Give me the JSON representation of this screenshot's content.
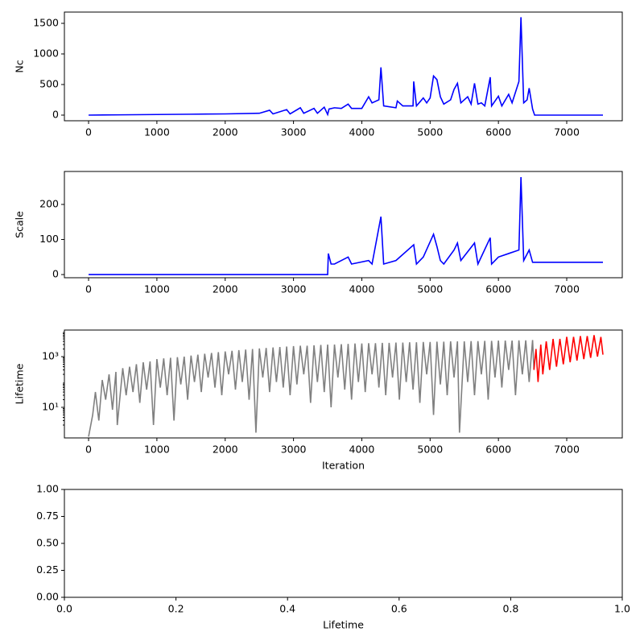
{
  "chart_data": [
    {
      "type": "line",
      "ylabel": "Nc",
      "xlim": [
        -354,
        7813
      ],
      "ylim": [
        -92,
        1684
      ],
      "xticks": [
        0,
        1000,
        2000,
        3000,
        4000,
        5000,
        6000,
        7000
      ],
      "yticks": [
        0,
        500,
        1000,
        1500
      ],
      "series": [
        {
          "color": "#0000ff",
          "x": [
            0,
            500,
            1000,
            1500,
            2000,
            2500,
            2650,
            2700,
            2900,
            2950,
            3100,
            3150,
            3300,
            3350,
            3450,
            3500,
            3520,
            3600,
            3700,
            3800,
            3850,
            4000,
            4100,
            4150,
            4250,
            4280,
            4320,
            4500,
            4520,
            4600,
            4750,
            4760,
            4800,
            4900,
            4950,
            5000,
            5050,
            5100,
            5150,
            5200,
            5300,
            5350,
            5400,
            5450,
            5550,
            5600,
            5650,
            5700,
            5750,
            5800,
            5880,
            5900,
            6000,
            6050,
            6150,
            6200,
            6300,
            6330,
            6370,
            6420,
            6450,
            6500,
            6530,
            7530
          ],
          "values": [
            0,
            5,
            10,
            15,
            20,
            30,
            80,
            20,
            90,
            20,
            120,
            30,
            110,
            30,
            130,
            10,
            100,
            120,
            110,
            180,
            110,
            110,
            300,
            200,
            250,
            780,
            150,
            120,
            230,
            150,
            150,
            550,
            150,
            280,
            200,
            280,
            640,
            580,
            300,
            180,
            250,
            420,
            520,
            200,
            300,
            180,
            520,
            180,
            200,
            150,
            620,
            150,
            310,
            150,
            340,
            200,
            550,
            1600,
            200,
            250,
            440,
            100,
            0,
            0
          ]
        }
      ]
    },
    {
      "type": "line",
      "ylabel": "Scale",
      "xlim": [
        -354,
        7813
      ],
      "ylim": [
        -9,
        294
      ],
      "xticks": [
        0,
        1000,
        2000,
        3000,
        4000,
        5000,
        6000,
        7000
      ],
      "yticks": [
        0,
        100,
        200
      ],
      "series": [
        {
          "color": "#0000ff",
          "x": [
            0,
            3500,
            3510,
            3550,
            3600,
            3800,
            3850,
            4100,
            4150,
            4280,
            4320,
            4500,
            4760,
            4800,
            4900,
            5050,
            5100,
            5150,
            5200,
            5350,
            5400,
            5450,
            5650,
            5700,
            5880,
            5900,
            6000,
            6150,
            6300,
            6330,
            6370,
            6450,
            6500,
            7530
          ],
          "values": [
            0,
            0,
            60,
            30,
            30,
            50,
            30,
            40,
            30,
            165,
            30,
            40,
            85,
            30,
            50,
            115,
            80,
            40,
            30,
            70,
            90,
            40,
            90,
            30,
            105,
            30,
            50,
            60,
            70,
            278,
            40,
            70,
            35,
            35
          ]
        }
      ]
    },
    {
      "type": "line",
      "ylabel": "Lifetime",
      "xlabel": "Iteration",
      "log_y": true,
      "xlim": [
        -354,
        7813
      ],
      "ylim": [
        0.62,
        11200
      ],
      "xticks": [
        0,
        1000,
        2000,
        3000,
        4000,
        5000,
        6000,
        7000
      ],
      "yticks": [
        {
          "value": 10,
          "label": "10¹"
        },
        {
          "value": 1000,
          "label": "10³"
        }
      ],
      "series": [
        {
          "color": "#808080",
          "x": [
            0,
            60,
            100,
            150,
            200,
            250,
            300,
            350,
            400,
            420,
            500,
            550,
            600,
            650,
            700,
            750,
            800,
            850,
            900,
            950,
            1000,
            1050,
            1100,
            1150,
            1200,
            1250,
            1300,
            1350,
            1400,
            1450,
            1500,
            1550,
            1600,
            1650,
            1700,
            1750,
            1800,
            1850,
            1900,
            1950,
            2000,
            2050,
            2100,
            2150,
            2200,
            2250,
            2300,
            2350,
            2400,
            2450,
            2500,
            2550,
            2600,
            2650,
            2700,
            2750,
            2800,
            2850,
            2900,
            2950,
            3000,
            3050,
            3100,
            3150,
            3200,
            3250,
            3300,
            3350,
            3400,
            3450,
            3500,
            3550,
            3600,
            3650,
            3700,
            3750,
            3800,
            3850,
            3900,
            3950,
            4000,
            4050,
            4100,
            4150,
            4200,
            4250,
            4300,
            4350,
            4400,
            4450,
            4500,
            4550,
            4600,
            4650,
            4700,
            4750,
            4800,
            4850,
            4900,
            4950,
            5000,
            5050,
            5100,
            5150,
            5200,
            5250,
            5300,
            5350,
            5400,
            5430,
            5500,
            5550,
            5600,
            5650,
            5700,
            5750,
            5800,
            5850,
            5900,
            5950,
            6000,
            6050,
            6100,
            6150,
            6200,
            6250,
            6300,
            6350,
            6400,
            6450,
            6500,
            6520
          ],
          "values": [
            0.7,
            5,
            40,
            3,
            120,
            20,
            200,
            8,
            250,
            2,
            350,
            30,
            400,
            40,
            500,
            15,
            600,
            50,
            650,
            2,
            800,
            60,
            850,
            30,
            900,
            3,
            950,
            80,
            1000,
            20,
            1100,
            100,
            1200,
            40,
            1300,
            150,
            1400,
            60,
            1500,
            30,
            1600,
            200,
            1700,
            50,
            1800,
            100,
            1900,
            20,
            2000,
            1,
            2100,
            150,
            2200,
            40,
            2300,
            100,
            2400,
            60,
            2500,
            30,
            2600,
            80,
            2700,
            200,
            2700,
            15,
            2800,
            100,
            2900,
            40,
            3000,
            10,
            3000,
            150,
            3100,
            50,
            3200,
            20,
            3300,
            100,
            3300,
            40,
            3400,
            200,
            3400,
            60,
            3500,
            30,
            3500,
            150,
            3600,
            20,
            3600,
            100,
            3700,
            50,
            3700,
            15,
            3800,
            200,
            3800,
            5,
            3900,
            80,
            3900,
            30,
            4000,
            150,
            4000,
            1,
            4000,
            100,
            4100,
            30,
            4100,
            200,
            4200,
            20,
            4200,
            150,
            4300,
            60,
            4300,
            300,
            4300,
            30,
            4400,
            200,
            4400,
            100,
            4500,
            300
          ]
        },
        {
          "color": "#ff0000",
          "x": [
            6520,
            6550,
            6580,
            6620,
            6650,
            6700,
            6750,
            6800,
            6850,
            6900,
            6950,
            7000,
            7050,
            7100,
            7150,
            7200,
            7250,
            7300,
            7350,
            7400,
            7450,
            7500,
            7530
          ],
          "values": [
            300,
            2000,
            100,
            3000,
            200,
            4000,
            300,
            5000,
            400,
            5000,
            500,
            6000,
            600,
            6000,
            700,
            6500,
            800,
            6500,
            900,
            7000,
            1000,
            6000,
            1200
          ]
        }
      ]
    },
    {
      "type": "line",
      "xlabel": "Lifetime",
      "xlim": [
        0,
        1
      ],
      "ylim": [
        0,
        1
      ],
      "xticks": [
        {
          "value": 0,
          "label": "0.0"
        },
        0.2,
        0.4,
        0.6,
        0.8,
        {
          "value": 1,
          "label": "1.0"
        }
      ],
      "yticks": [
        {
          "value": 0,
          "label": "0.00"
        },
        {
          "value": 0.25,
          "label": "0.25"
        },
        {
          "value": 0.5,
          "label": "0.50"
        },
        {
          "value": 0.75,
          "label": "0.75"
        },
        {
          "value": 1,
          "label": "1.00"
        }
      ],
      "series": []
    }
  ]
}
